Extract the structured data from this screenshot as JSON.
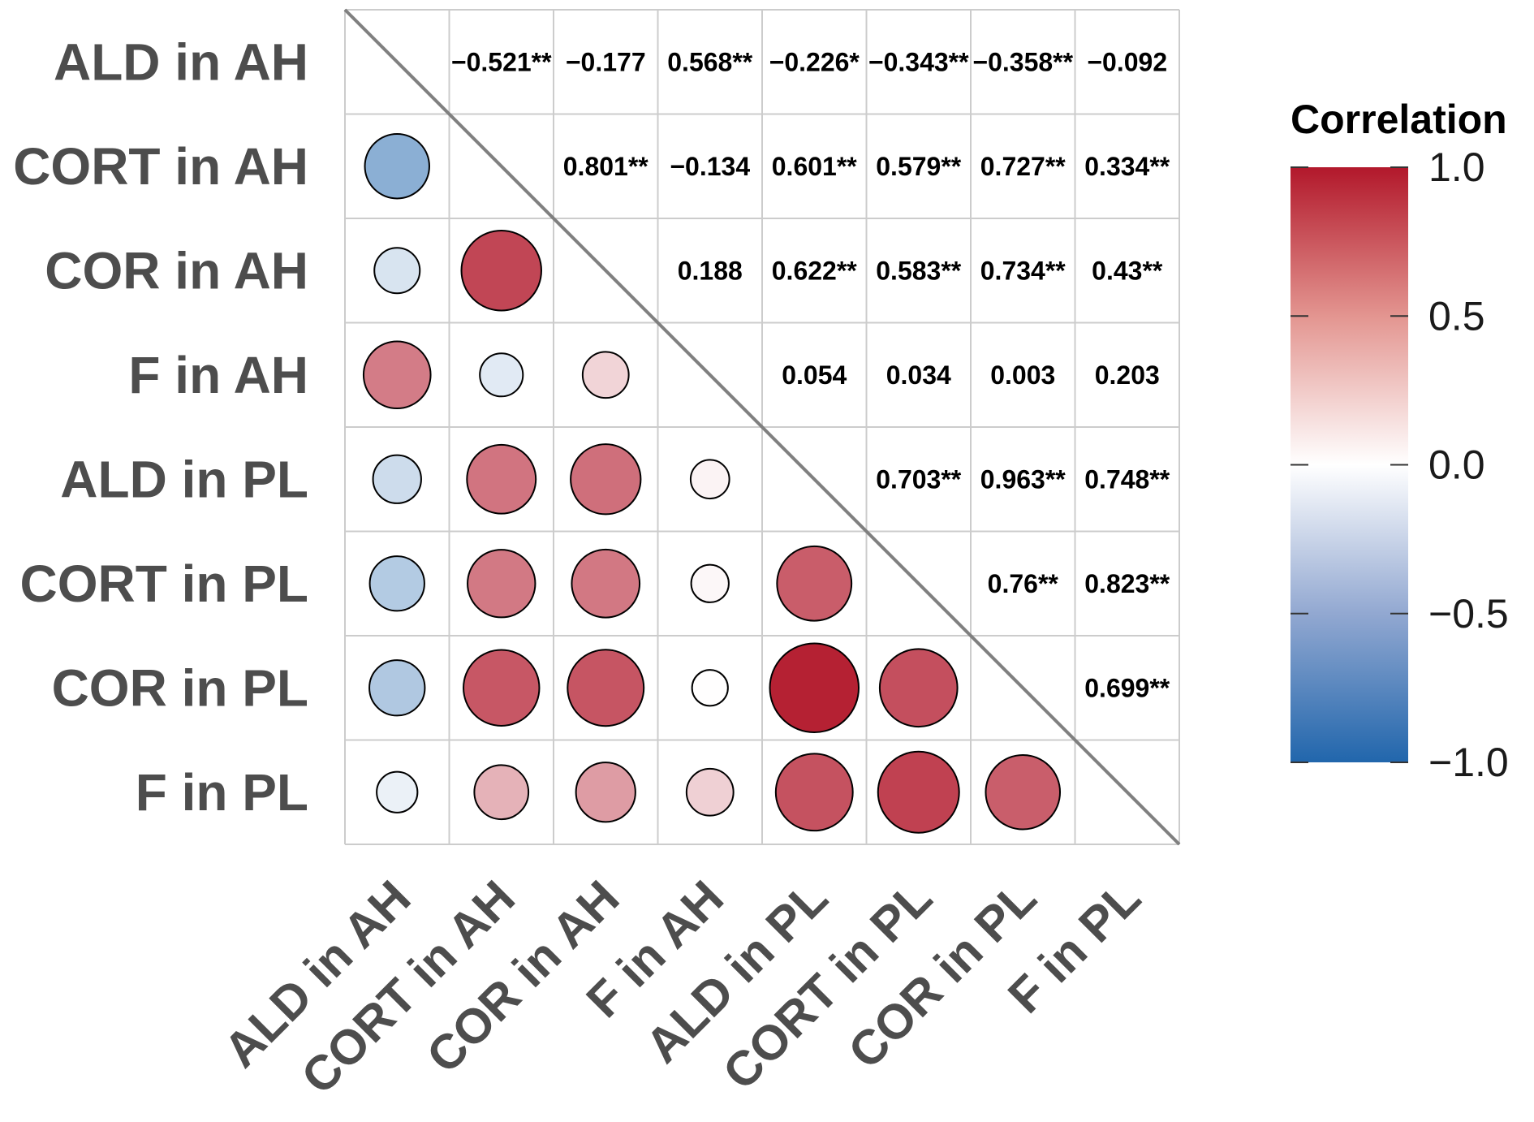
{
  "chart_data": {
    "type": "heatmap",
    "title": "",
    "variables": [
      "ALD in AH",
      "CORT in AH",
      "COR in AH",
      "F in AH",
      "ALD in PL",
      "CORT in PL",
      "COR in PL",
      "F in PL"
    ],
    "lower_values": [
      [
        null,
        null,
        null,
        null,
        null,
        null,
        null,
        null
      ],
      [
        -0.521,
        null,
        null,
        null,
        null,
        null,
        null,
        null
      ],
      [
        -0.177,
        0.801,
        null,
        null,
        null,
        null,
        null,
        null
      ],
      [
        0.568,
        -0.134,
        0.188,
        null,
        null,
        null,
        null,
        null
      ],
      [
        -0.226,
        0.601,
        0.622,
        0.054,
        null,
        null,
        null,
        null
      ],
      [
        -0.343,
        0.579,
        0.583,
        0.034,
        0.703,
        null,
        null,
        null
      ],
      [
        -0.358,
        0.727,
        0.734,
        0.003,
        0.963,
        0.76,
        null,
        null
      ],
      [
        -0.092,
        0.334,
        0.43,
        0.203,
        0.748,
        0.823,
        0.699,
        null
      ]
    ],
    "upper_labels": [
      [
        null,
        "−0.521**",
        "−0.177",
        "0.568**",
        "−0.226*",
        "−0.343**",
        "−0.358**",
        "−0.092"
      ],
      [
        null,
        null,
        "0.801**",
        "−0.134",
        "0.601**",
        "0.579**",
        "0.727**",
        "0.334**"
      ],
      [
        null,
        null,
        null,
        "0.188",
        "0.622**",
        "0.583**",
        "0.734**",
        "0.43**"
      ],
      [
        null,
        null,
        null,
        null,
        "0.054",
        "0.034",
        "0.003",
        "0.203"
      ],
      [
        null,
        null,
        null,
        null,
        null,
        "0.703**",
        "0.963**",
        "0.748**"
      ],
      [
        null,
        null,
        null,
        null,
        null,
        null,
        "0.76**",
        "0.823**"
      ],
      [
        null,
        null,
        null,
        null,
        null,
        null,
        null,
        "0.699**"
      ],
      [
        null,
        null,
        null,
        null,
        null,
        null,
        null,
        null
      ]
    ],
    "legend": {
      "title": "Correlation",
      "range": [
        -1.0,
        1.0
      ],
      "ticks": [
        1.0,
        0.5,
        0.0,
        -0.5,
        -1.0
      ],
      "tick_labels": [
        "1.0",
        "0.5",
        "0.0",
        "−0.5",
        "−1.0"
      ],
      "colors": {
        "low": "#2166ac",
        "mid": "#ffffff",
        "high": "#b2182b"
      },
      "position": "right"
    }
  }
}
